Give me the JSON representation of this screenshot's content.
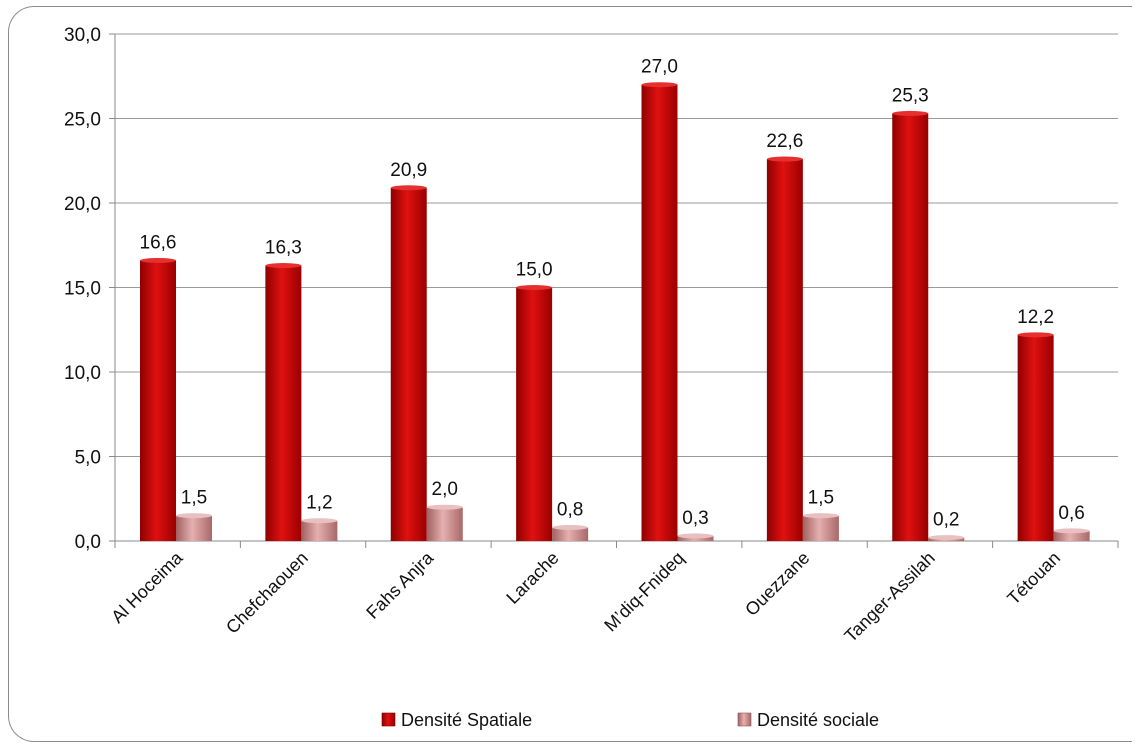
{
  "chart_data": {
    "type": "bar",
    "categories": [
      "Al Hoceima",
      "Chefchaouen",
      "Fahs Anjra",
      "Larache",
      "M’diq-Fnideq",
      "Ouezzane",
      "Tanger-Assilah",
      "Tétouan"
    ],
    "series": [
      {
        "name": "Densité  Spatiale",
        "values": [
          16.6,
          16.3,
          20.9,
          15.0,
          27.0,
          22.6,
          25.3,
          12.2
        ],
        "labels": [
          "16,6",
          "16,3",
          "20,9",
          "15,0",
          "27,0",
          "22,6",
          "25,3",
          "12,2"
        ],
        "color": "#cc0000"
      },
      {
        "name": "Densité sociale",
        "values": [
          1.5,
          1.2,
          2.0,
          0.8,
          0.3,
          1.5,
          0.2,
          0.6
        ],
        "labels": [
          "1,5",
          "1,2",
          "2,0",
          "0,8",
          "0,3",
          "1,5",
          "0,2",
          "0,6"
        ],
        "color": "#c98a8a"
      }
    ],
    "y_ticks": [
      "0,0",
      "5,0",
      "10,0",
      "15,0",
      "20,0",
      "25,0",
      "30,0"
    ],
    "ylim": [
      0,
      30
    ],
    "grid": true,
    "legend_position": "bottom"
  }
}
